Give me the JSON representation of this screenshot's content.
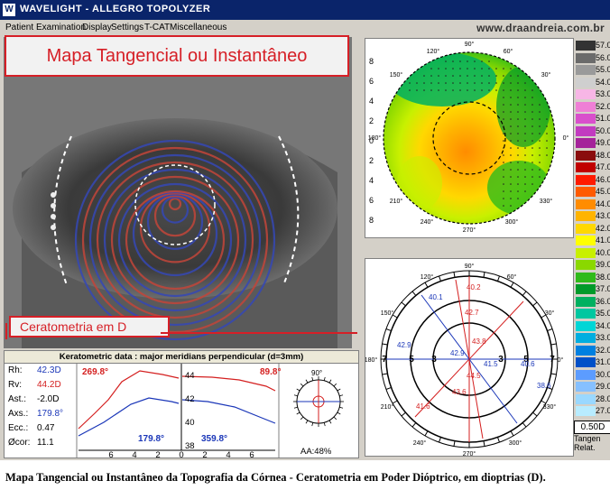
{
  "window": {
    "title": "WAVELIGHT  -  ALLEGRO TOPOLYZER",
    "watermark": "www.draandreia.com.br"
  },
  "menu": [
    "Patient",
    "Examination",
    "Display",
    "Settings",
    "T-CAT",
    "Miscellaneous"
  ],
  "callouts": {
    "map_title": "Mapa Tangencial ou Instantâneo",
    "keratometry": "Ceratometria em D"
  },
  "topo_map": {
    "axis_labels_x": [
      "8",
      "6",
      "4",
      "2",
      "0",
      "2",
      "4",
      "6",
      "8"
    ],
    "axis_labels_y": [
      "8",
      "6",
      "4",
      "2",
      "0",
      "2",
      "4",
      "6",
      "8"
    ],
    "angle_labels": [
      "90°",
      "120°",
      "60°",
      "150°",
      "30°",
      "180°",
      "0°",
      "210°",
      "330°",
      "240°",
      "300°",
      "270°"
    ]
  },
  "kerato_diagram": {
    "angle_labels": [
      "90°",
      "120°",
      "60°",
      "150°",
      "30°",
      "180°",
      "0°",
      "210°",
      "330°",
      "240°",
      "300°",
      "270°"
    ],
    "ring_labels": [
      "7",
      "5",
      "3",
      "3",
      "5",
      "7"
    ],
    "values": [
      "40.1",
      "40.2",
      "42.7",
      "43.8",
      "42.9",
      "42.9",
      "41.5",
      "40.6",
      "44.5",
      "38.6",
      "41.6",
      "43.6"
    ]
  },
  "scale": {
    "values": [
      "57.0",
      "56.0",
      "55.0",
      "54.0",
      "53.0",
      "52.0",
      "51.0",
      "50.0",
      "49.0",
      "48.0",
      "47.0",
      "46.0",
      "45.0",
      "44.0",
      "43.0",
      "42.0",
      "41.0",
      "40.0",
      "39.0",
      "38.0",
      "37.0",
      "36.0",
      "35.0",
      "34.0",
      "33.0",
      "32.0",
      "31.0",
      "30.0",
      "29.0",
      "28.0",
      "27.0"
    ],
    "colors": [
      "#333333",
      "#6b6b6b",
      "#9a9a9a",
      "#cfcfcf",
      "#f7b6e6",
      "#ef7fd6",
      "#d94fcc",
      "#c23bc0",
      "#a5239a",
      "#8a0d0d",
      "#c10000",
      "#ff1a00",
      "#ff5a00",
      "#ff8c00",
      "#ffb400",
      "#ffd800",
      "#ffff00",
      "#c8f000",
      "#8ad800",
      "#2fba1a",
      "#009a2a",
      "#00b060",
      "#00c7a0",
      "#00d6d6",
      "#00aee0",
      "#0080e0",
      "#0050c8",
      "#5c9cff",
      "#86c0ff",
      "#9ad8ff",
      "#b8ecff"
    ],
    "step": "0.50D",
    "mode_top": "Tangen",
    "mode_bot": "Relat."
  },
  "keratometry": {
    "header": "Keratometric data : major meridians perpendicular (d=3mm)",
    "rows": [
      {
        "label": "Rh:",
        "value": "42.3D"
      },
      {
        "label": "Rv:",
        "value": "44.2D"
      },
      {
        "label": "Ast.:",
        "value": "-2.0D"
      },
      {
        "label": "Axs.:",
        "value": "179.8°"
      },
      {
        "label": "Ecc.:",
        "value": "0.47"
      },
      {
        "label": "Øcor:",
        "value": "11.1"
      }
    ],
    "graph_left_angle_top": "269.8°",
    "graph_left_angle_bot": "179.8°",
    "graph_right_angle_top": "89.8°",
    "graph_right_angle_bot": "359.8°",
    "graph_y": [
      "44",
      "42",
      "40",
      "38"
    ],
    "graph_x": [
      "6",
      "4",
      "2",
      "0",
      "2",
      "4",
      "6"
    ],
    "mini_label_top": "90°",
    "aa": "AA:48%"
  },
  "caption": "Mapa Tangencial ou Instantâneo da Topografia da Córnea - Ceratometria em Poder Dióptrico, em dioptrias (D)."
}
